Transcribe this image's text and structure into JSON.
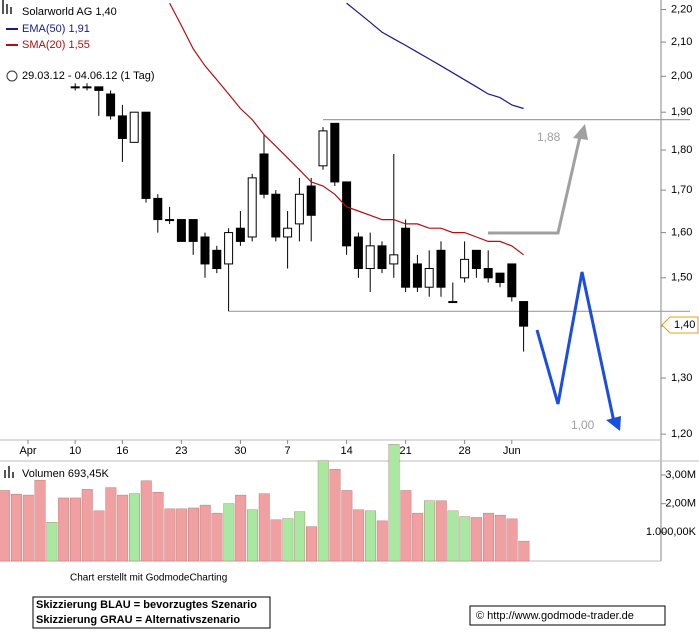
{
  "chart_data": {
    "type": "candlestick",
    "title": "Solarworld AG",
    "last_label": "1,40",
    "last_value": 1.4,
    "period": "29.03.12 - 04.06.12 (1 Tag)",
    "log_scale": true,
    "up_fill": "#ffffff",
    "down_fill": "#000000",
    "categories": [
      null,
      null,
      "Apr",
      null,
      null,
      null,
      "10",
      null,
      null,
      null,
      "16",
      null,
      null,
      null,
      null,
      "23",
      null,
      null,
      null,
      null,
      "30",
      null,
      null,
      null,
      "7",
      null,
      null,
      null,
      null,
      "14",
      null,
      null,
      null,
      null,
      "21",
      null,
      null,
      null,
      null,
      "28",
      null,
      null,
      null,
      "Jun",
      null
    ],
    "open": [
      null,
      null,
      null,
      null,
      null,
      null,
      1.97,
      1.97,
      1.97,
      1.95,
      1.89,
      1.82,
      1.9,
      1.68,
      1.63,
      1.63,
      1.63,
      1.59,
      1.56,
      1.53,
      1.61,
      1.59,
      1.79,
      1.69,
      1.59,
      1.62,
      1.71,
      1.76,
      1.87,
      1.72,
      1.59,
      1.52,
      1.57,
      1.53,
      1.61,
      1.53,
      1.48,
      1.56,
      1.45,
      1.5,
      1.56,
      1.52,
      1.51,
      1.53,
      1.45
    ],
    "high": [
      null,
      null,
      null,
      null,
      null,
      null,
      1.98,
      1.98,
      1.97,
      1.96,
      1.92,
      1.9,
      1.9,
      1.69,
      1.66,
      1.63,
      1.63,
      1.6,
      1.57,
      1.61,
      1.65,
      1.74,
      1.84,
      1.7,
      1.65,
      1.73,
      1.73,
      1.86,
      1.87,
      1.72,
      1.6,
      1.6,
      1.58,
      1.79,
      1.63,
      1.55,
      1.56,
      1.58,
      1.49,
      1.58,
      1.56,
      1.56,
      1.51,
      1.53,
      1.45
    ],
    "low": [
      null,
      null,
      null,
      null,
      null,
      null,
      1.96,
      1.96,
      1.89,
      1.88,
      1.77,
      1.82,
      1.67,
      1.6,
      1.62,
      1.58,
      1.55,
      1.5,
      1.51,
      1.43,
      1.57,
      1.58,
      1.68,
      1.58,
      1.52,
      1.58,
      1.58,
      1.75,
      1.71,
      1.55,
      1.5,
      1.47,
      1.51,
      1.5,
      1.47,
      1.47,
      1.46,
      1.46,
      1.45,
      1.49,
      1.5,
      1.49,
      1.48,
      1.45,
      1.35
    ],
    "close": [
      null,
      null,
      null,
      null,
      null,
      null,
      1.97,
      1.97,
      1.96,
      1.89,
      1.83,
      1.9,
      1.68,
      1.63,
      1.63,
      1.58,
      1.58,
      1.53,
      1.52,
      1.6,
      1.58,
      1.73,
      1.69,
      1.59,
      1.61,
      1.69,
      1.64,
      1.85,
      1.72,
      1.57,
      1.52,
      1.57,
      1.52,
      1.55,
      1.48,
      1.48,
      1.52,
      1.48,
      1.45,
      1.54,
      1.52,
      1.5,
      1.49,
      1.46,
      1.4
    ],
    "series": [
      {
        "name": "EMA(50)",
        "color": "#1a1a8c",
        "last_label": "1,91",
        "values": [
          null,
          null,
          null,
          null,
          null,
          null,
          null,
          null,
          null,
          null,
          null,
          null,
          null,
          null,
          null,
          null,
          null,
          null,
          null,
          null,
          null,
          null,
          null,
          null,
          null,
          null,
          null,
          null,
          null,
          2.22,
          2.19,
          2.16,
          2.13,
          2.11,
          2.09,
          2.07,
          2.05,
          2.03,
          2.01,
          1.99,
          1.97,
          1.95,
          1.94,
          1.92,
          1.91
        ]
      },
      {
        "name": "SMA(20)",
        "color": "#b01010",
        "last_label": "1,55",
        "values": [
          null,
          null,
          null,
          null,
          null,
          null,
          null,
          null,
          null,
          null,
          null,
          null,
          null,
          null,
          2.22,
          2.15,
          2.08,
          2.03,
          1.99,
          1.95,
          1.91,
          1.88,
          1.84,
          1.81,
          1.78,
          1.75,
          1.72,
          1.71,
          1.69,
          1.66,
          1.65,
          1.64,
          1.63,
          1.63,
          1.62,
          1.62,
          1.61,
          1.61,
          1.6,
          1.6,
          1.59,
          1.58,
          1.58,
          1.57,
          1.55
        ]
      }
    ],
    "ylim": [
      1.19,
      2.23
    ],
    "yticks": [
      {
        "value": 1.2,
        "label": "1,20"
      },
      {
        "value": 1.3,
        "label": "1,30"
      },
      {
        "value": 1.4,
        "label": "1,40"
      },
      {
        "value": 1.5,
        "label": "1,50"
      },
      {
        "value": 1.6,
        "label": "1,60"
      },
      {
        "value": 1.7,
        "label": "1,70"
      },
      {
        "value": 1.8,
        "label": "1,80"
      },
      {
        "value": 1.9,
        "label": "1,90"
      },
      {
        "value": 2.0,
        "label": "2,00"
      },
      {
        "value": 2.1,
        "label": "2,10"
      },
      {
        "value": 2.2,
        "label": "2,20"
      }
    ],
    "hlines": [
      {
        "value": 1.88,
        "label": "1,88"
      },
      {
        "value": 1.43
      }
    ],
    "annotations": [
      "1,00"
    ],
    "volume": {
      "title": "Volumen 693,45K",
      "values": [
        2460000,
        2330000,
        2300000,
        2820000,
        1350000,
        2200000,
        2200000,
        2500000,
        1750000,
        2560000,
        2300000,
        2350000,
        2800000,
        2400000,
        1820000,
        1820000,
        1850000,
        1950000,
        1670000,
        2000000,
        2300000,
        1790000,
        2350000,
        1440000,
        1480000,
        1720000,
        1200000,
        3500000,
        3200000,
        2460000,
        1790000,
        1750000,
        1400000,
        4070000,
        2460000,
        1670000,
        2100000,
        2100000,
        1750000,
        1550000,
        1520000,
        1670000,
        1600000,
        1470000,
        693450
      ],
      "colors": [
        "#f0a0a0",
        "#f0a0a0",
        "#f0a0a0",
        "#f0a0a0",
        "#a8e8a0",
        "#f0a0a0",
        "#f0a0a0",
        "#f0a0a0",
        "#f0a0a0",
        "#f0a0a0",
        "#f0a0a0",
        "#a8e8a0",
        "#f0a0a0",
        "#f0a0a0",
        "#f0a0a0",
        "#f0a0a0",
        "#f0a0a0",
        "#f0a0a0",
        "#f0a0a0",
        "#a8e8a0",
        "#f0a0a0",
        "#a8e8a0",
        "#f0a0a0",
        "#f0a0a0",
        "#a8e8a0",
        "#a8e8a0",
        "#f0a0a0",
        "#a8e8a0",
        "#f0a0a0",
        "#f0a0a0",
        "#f0a0a0",
        "#a8e8a0",
        "#f0a0a0",
        "#a8e8a0",
        "#f0a0a0",
        "#f0a0a0",
        "#a8e8a0",
        "#f0a0a0",
        "#a8e8a0",
        "#a8e8a0",
        "#f0a0a0",
        "#f0a0a0",
        "#f0a0a0",
        "#f0a0a0",
        "#f0a0a0"
      ],
      "ylim": [
        0,
        4220000
      ],
      "yticks": [
        {
          "value": 3000000,
          "label": "3,00M"
        },
        {
          "value": 2000000,
          "label": "2,00M"
        },
        {
          "value": 1000000,
          "label": "1.000,00K"
        }
      ]
    },
    "footer": "Chart erstellt mit GodmodeCharting",
    "notes": [
      "Skizzierung BLAU = bevorzugtes Szenario",
      "Skizzierung GRAU = Alternativszenario"
    ],
    "copyright": "© http://www.godmode-trader.de"
  }
}
